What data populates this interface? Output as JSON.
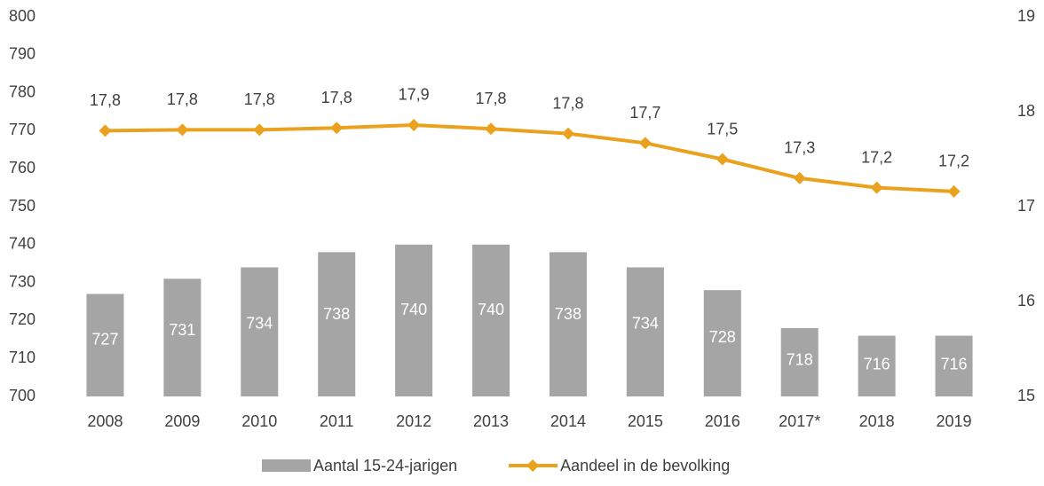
{
  "chart_data": {
    "type": "bar_line",
    "categories": [
      "2008",
      "2009",
      "2010",
      "2011",
      "2012",
      "2013",
      "2014",
      "2015",
      "2016",
      "2017*",
      "2018",
      "2019"
    ],
    "series": [
      {
        "name": "Aantal 15-24-jarigen",
        "color": "#a5a5a5",
        "type": "bar",
        "values": [
          727,
          731,
          734,
          738,
          740,
          740,
          738,
          734,
          728,
          718,
          716,
          716
        ]
      },
      {
        "name": "Aandeel in de bevolking",
        "color": "#eaa21e",
        "type": "line",
        "axis": "y2",
        "values": [
          17.8,
          17.81,
          17.81,
          17.83,
          17.86,
          17.82,
          17.77,
          17.67,
          17.5,
          17.3,
          17.2,
          17.16
        ],
        "value_labels": [
          "17,8",
          "17,8",
          "17,8",
          "17,8",
          "17,9",
          "17,8",
          "17,8",
          "17,7",
          "17,5",
          "17,3",
          "17,2",
          "17,2"
        ]
      }
    ],
    "ylim": [
      700,
      800
    ],
    "yticks": [
      700,
      710,
      720,
      730,
      740,
      750,
      760,
      770,
      780,
      790,
      800
    ],
    "y2lim": [
      15,
      19
    ],
    "y2ticks": [
      15,
      16,
      17,
      18,
      19
    ],
    "legend": "bottom",
    "grid": false
  }
}
